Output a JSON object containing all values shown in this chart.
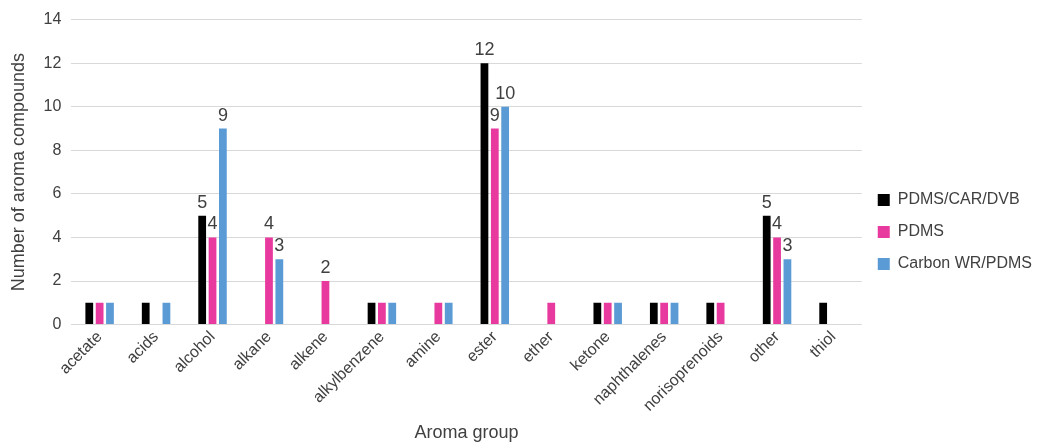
{
  "chart_data": {
    "type": "bar",
    "xlabel": "Aroma group",
    "ylabel": "Number of aroma compounds",
    "categories": [
      "acetate",
      "acids",
      "alcohol",
      "alkane",
      "alkene",
      "alkylbenzene",
      "amine",
      "ester",
      "ether",
      "ketone",
      "naphthalenes",
      "norisoprenoids",
      "other",
      "thiol"
    ],
    "series": [
      {
        "name": "PDMS/CAR/DVB",
        "color": "#000000",
        "values": [
          1,
          1,
          5,
          null,
          null,
          1,
          null,
          12,
          null,
          1,
          1,
          1,
          5,
          1
        ],
        "value_labels": [
          null,
          null,
          "5",
          null,
          null,
          null,
          null,
          "12",
          null,
          null,
          null,
          null,
          "5",
          null
        ]
      },
      {
        "name": "PDMS",
        "color": "#e8399e",
        "values": [
          1,
          null,
          4,
          4,
          2,
          1,
          1,
          9,
          1,
          1,
          1,
          1,
          4,
          null
        ],
        "value_labels": [
          null,
          null,
          "4",
          "4",
          "2",
          null,
          null,
          "9",
          null,
          null,
          null,
          null,
          "4",
          null
        ]
      },
      {
        "name": "Carbon WR/PDMS",
        "color": "#5b9bd5",
        "values": [
          1,
          1,
          9,
          3,
          null,
          1,
          1,
          10,
          null,
          1,
          1,
          null,
          3,
          null
        ],
        "value_labels": [
          null,
          null,
          "9",
          "3",
          null,
          null,
          null,
          "10",
          null,
          null,
          null,
          null,
          "3",
          null
        ]
      }
    ],
    "ylim": [
      0,
      14
    ],
    "yticks": [
      0,
      2,
      4,
      6,
      8,
      10,
      12,
      14
    ],
    "grid": "y",
    "legend": "right"
  }
}
